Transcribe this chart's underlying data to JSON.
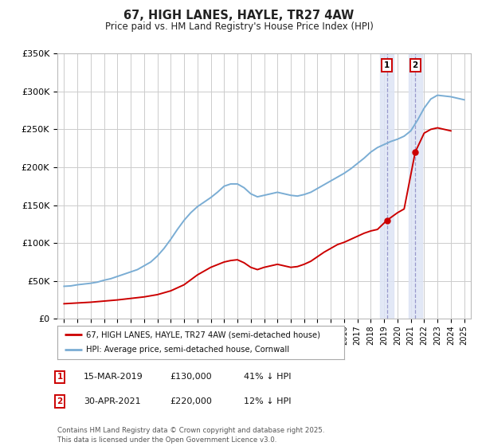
{
  "title": "67, HIGH LANES, HAYLE, TR27 4AW",
  "subtitle": "Price paid vs. HM Land Registry's House Price Index (HPI)",
  "ylim": [
    0,
    350000
  ],
  "xlim": [
    1994.5,
    2025.5
  ],
  "legend_label_red": "67, HIGH LANES, HAYLE, TR27 4AW (semi-detached house)",
  "legend_label_blue": "HPI: Average price, semi-detached house, Cornwall",
  "sale1_date": "15-MAR-2019",
  "sale1_price": "£130,000",
  "sale1_hpi": "41% ↓ HPI",
  "sale1_year": 2019.21,
  "sale1_value": 130000,
  "sale2_date": "30-APR-2021",
  "sale2_price": "£220,000",
  "sale2_hpi": "12% ↓ HPI",
  "sale2_year": 2021.33,
  "sale2_value": 220000,
  "footnote": "Contains HM Land Registry data © Crown copyright and database right 2025.\nThis data is licensed under the Open Government Licence v3.0.",
  "line_color_red": "#cc0000",
  "line_color_blue": "#7aadd4",
  "background_color": "#ffffff",
  "grid_color": "#cccccc",
  "shade_color": "#dde4f5",
  "hpi_years": [
    1995,
    1995.5,
    1996,
    1996.5,
    1997,
    1997.5,
    1998,
    1998.5,
    1999,
    1999.5,
    2000,
    2000.5,
    2001,
    2001.5,
    2002,
    2002.5,
    2003,
    2003.5,
    2004,
    2004.5,
    2005,
    2005.5,
    2006,
    2006.5,
    2007,
    2007.5,
    2008,
    2008.5,
    2009,
    2009.5,
    2010,
    2010.5,
    2011,
    2011.5,
    2012,
    2012.5,
    2013,
    2013.5,
    2014,
    2014.5,
    2015,
    2015.5,
    2016,
    2016.5,
    2017,
    2017.5,
    2018,
    2018.5,
    2019,
    2019.5,
    2020,
    2020.5,
    2021,
    2021.5,
    2022,
    2022.5,
    2023,
    2023.5,
    2024,
    2024.5,
    2025
  ],
  "hpi_values": [
    43000,
    43500,
    45000,
    46000,
    47000,
    48500,
    51000,
    53000,
    56000,
    59000,
    62000,
    65000,
    70000,
    75000,
    83000,
    93000,
    105000,
    118000,
    130000,
    140000,
    148000,
    154000,
    160000,
    167000,
    175000,
    178000,
    178000,
    173000,
    165000,
    161000,
    163000,
    165000,
    167000,
    165000,
    163000,
    162000,
    164000,
    167000,
    172000,
    177000,
    182000,
    187000,
    192000,
    198000,
    205000,
    212000,
    220000,
    226000,
    230000,
    234000,
    237000,
    241000,
    248000,
    262000,
    278000,
    290000,
    295000,
    294000,
    293000,
    291000,
    289000
  ],
  "red_years": [
    1995,
    1996,
    1997,
    1998,
    1999,
    2000,
    2001,
    2002,
    2003,
    2004,
    2005,
    2006,
    2007,
    2007.5,
    2008,
    2008.5,
    2009,
    2009.5,
    2010,
    2010.5,
    2011,
    2011.5,
    2012,
    2012.5,
    2013,
    2013.5,
    2014,
    2014.5,
    2015,
    2015.5,
    2016,
    2016.5,
    2017,
    2017.5,
    2018,
    2018.5,
    2019.21,
    2020,
    2020.5,
    2021.33,
    2022,
    2022.5,
    2023,
    2023.5,
    2024
  ],
  "red_values": [
    20000,
    21000,
    22000,
    23500,
    25000,
    27000,
    29000,
    32000,
    37000,
    45000,
    58000,
    68000,
    75000,
    77000,
    78000,
    74000,
    68000,
    65000,
    68000,
    70000,
    72000,
    70000,
    68000,
    69000,
    72000,
    76000,
    82000,
    88000,
    93000,
    98000,
    101000,
    105000,
    109000,
    113000,
    116000,
    118000,
    130000,
    140000,
    145000,
    220000,
    245000,
    250000,
    252000,
    250000,
    248000
  ]
}
